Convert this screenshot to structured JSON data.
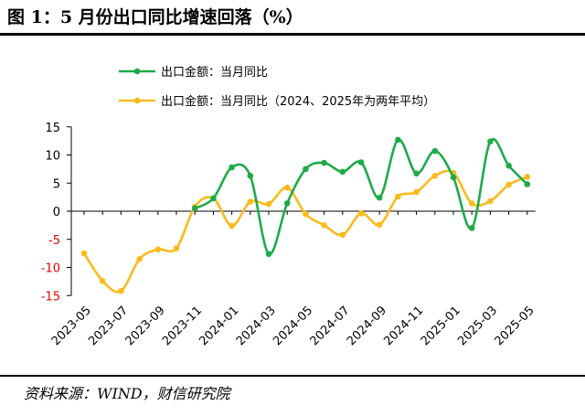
{
  "header": {
    "title": "图 1：5 月份出口同比增速回落（%）"
  },
  "footer": {
    "source": "资料来源：WIND，财信研究院"
  },
  "colors": {
    "green": "#1faa4a",
    "yellow": "#f7bb1c",
    "negative_tick": "#e60000",
    "axis": "#000000"
  },
  "chart_data": {
    "type": "line",
    "title": "",
    "xlabel": "",
    "ylabel": "",
    "ylim": [
      -15,
      15
    ],
    "yticks": [
      15,
      10,
      5,
      0,
      -5,
      -10,
      -15
    ],
    "grid": false,
    "legend_position": "top-center",
    "x": [
      "2023-05",
      "2023-06",
      "2023-07",
      "2023-08",
      "2023-09",
      "2023-10",
      "2023-11",
      "2023-12",
      "2024-01",
      "2024-02",
      "2024-03",
      "2024-04",
      "2024-05",
      "2024-06",
      "2024-07",
      "2024-08",
      "2024-09",
      "2024-10",
      "2024-11",
      "2024-12",
      "2025-01",
      "2025-02",
      "2025-03",
      "2025-04",
      "2025-05"
    ],
    "xtick_labels": [
      "2023-05",
      "2023-07",
      "2023-09",
      "2023-11",
      "2024-01",
      "2024-03",
      "2024-05",
      "2024-07",
      "2024-09",
      "2024-11",
      "2025-01",
      "2025-03",
      "2025-05"
    ],
    "series": [
      {
        "name": "出口金额：当月同比",
        "color": "#1faa4a",
        "x": [
          "2023-11",
          "2023-12",
          "2024-01",
          "2024-02",
          "2024-03",
          "2024-04",
          "2024-05",
          "2024-06",
          "2024-07",
          "2024-08",
          "2024-09",
          "2024-10",
          "2024-11",
          "2024-12",
          "2025-01",
          "2025-02",
          "2025-03",
          "2025-04",
          "2025-05"
        ],
        "values": [
          0.5,
          2.3,
          7.8,
          6.3,
          -7.6,
          1.4,
          7.5,
          8.6,
          7.0,
          8.7,
          2.4,
          12.7,
          6.7,
          10.7,
          6.0,
          -3.0,
          12.4,
          8.1,
          4.8
        ]
      },
      {
        "name": "出口金额：当月同比（2024、2025年为两年平均）",
        "color": "#f7bb1c",
        "x": [
          "2023-05",
          "2023-06",
          "2023-07",
          "2023-08",
          "2023-09",
          "2023-10",
          "2023-11",
          "2023-12",
          "2024-01",
          "2024-02",
          "2024-03",
          "2024-04",
          "2024-05",
          "2024-06",
          "2024-07",
          "2024-08",
          "2024-09",
          "2024-10",
          "2024-11",
          "2024-12",
          "2025-01",
          "2025-02",
          "2025-03",
          "2025-04",
          "2025-05"
        ],
        "values": [
          -7.5,
          -12.4,
          -14.2,
          -8.5,
          -6.8,
          -6.6,
          0.8,
          2.3,
          -2.6,
          1.7,
          1.3,
          4.2,
          -0.5,
          -2.5,
          -4.2,
          -0.4,
          -2.4,
          2.6,
          3.4,
          6.3,
          6.8,
          1.4,
          1.8,
          4.7,
          6.1
        ]
      }
    ]
  }
}
